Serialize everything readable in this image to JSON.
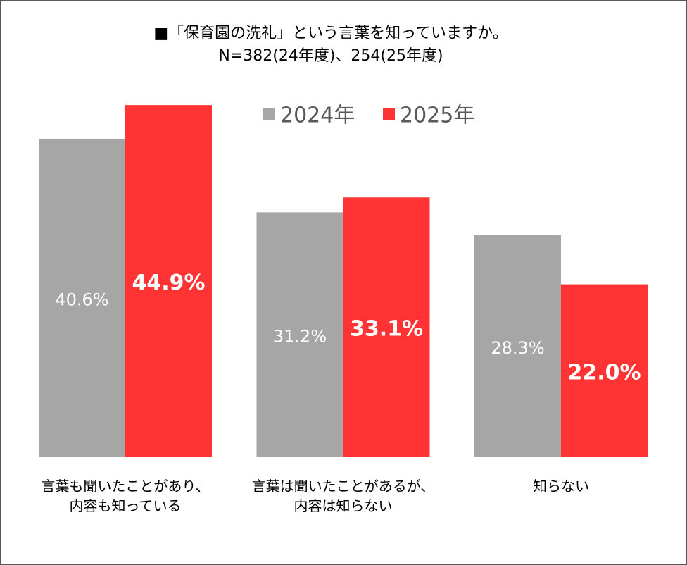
{
  "chart_data": {
    "type": "bar",
    "title": "■「保育園の洗礼」という言葉を知っていますか。",
    "subtitle": "N=382(24年度)、254(25年度)",
    "categories": [
      "言葉も聞いたことがあり、\n内容も知っている",
      "言葉は聞いたことがあるが、\n内容は知らない",
      "知らない"
    ],
    "series": [
      {
        "name": "2024年",
        "color": "#a6a6a6",
        "values": [
          40.6,
          31.2,
          28.3
        ],
        "value_labels": [
          "40.6%",
          "31.2%",
          "28.3%"
        ]
      },
      {
        "name": "2025年",
        "color": "#ff3333",
        "values": [
          44.9,
          33.1,
          22.0
        ],
        "value_labels": [
          "44.9%",
          "33.1%",
          "22.0%"
        ]
      }
    ],
    "legend": "top-right"
  }
}
